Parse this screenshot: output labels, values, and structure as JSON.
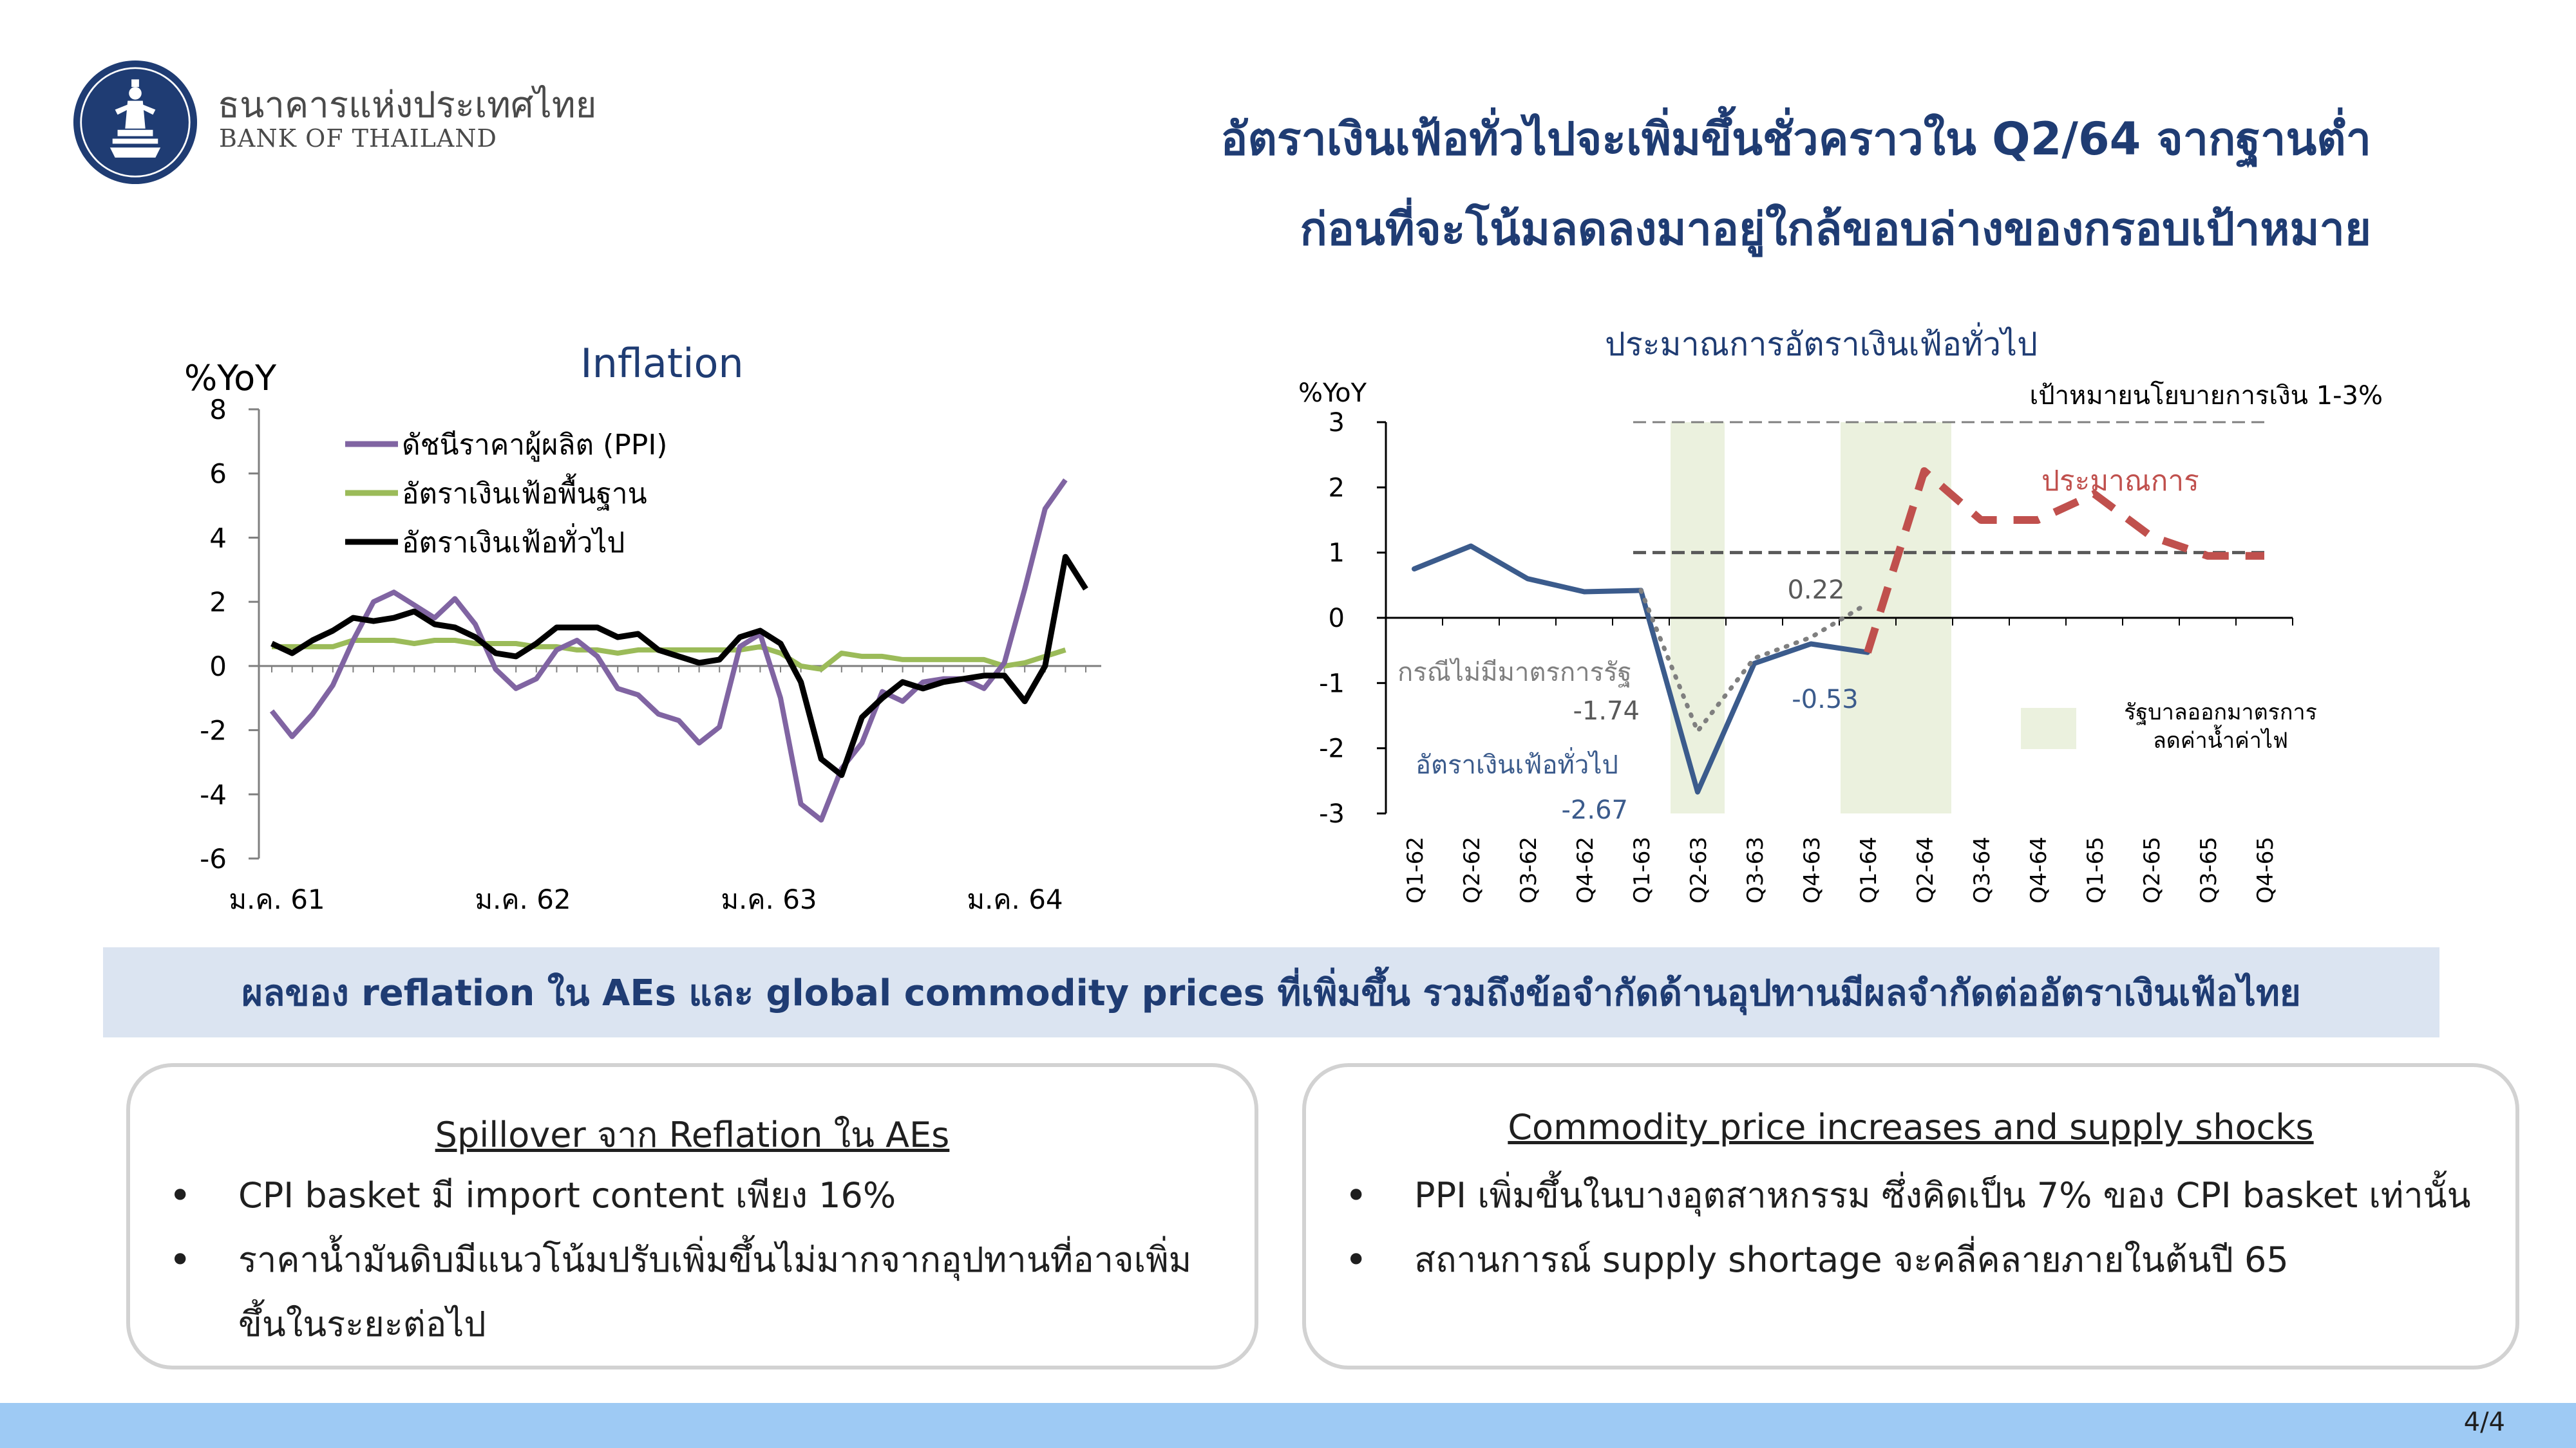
{
  "header": {
    "bank_name_th": "ธนาคารแห่งประเทศไทย",
    "bank_name_en": "BANK OF THAILAND",
    "title_line1": "อัตราเงินเฟ้อทั่วไปจะเพิ่มขึ้นชั่วคราวใน Q2/64 จากฐานต่ำ",
    "title_line2": "ก่อนที่จะโน้มลดลงมาอยู่ใกล้ขอบล่างของกรอบเป้าหมาย"
  },
  "colors": {
    "navy": "#1f3c73",
    "ppi": "#8064a2",
    "core": "#9bbb59",
    "headline": "#000000",
    "forecast": "#c0504d",
    "actual": "#3b5b8c",
    "no_measure": "#7f7f7f",
    "shade": "#ebf1de"
  },
  "chart_data": [
    {
      "type": "line",
      "title": "Inflation",
      "ylabel": "%YoY",
      "ylim": [
        -6,
        8
      ],
      "yticks": [
        "8",
        "6",
        "4",
        "2",
        "0",
        "-2",
        "-4",
        "-6"
      ],
      "xtick_labels": [
        "ม.ค. 61",
        "ม.ค. 62",
        "ม.ค. 63",
        "ม.ค. 64"
      ],
      "legend_position": "top-left",
      "series": [
        {
          "name": "ดัชนีราคาผู้ผลิต (PPI)",
          "color": "#8064a2",
          "values": [
            -1.4,
            -2.2,
            -1.5,
            -0.6,
            0.8,
            2.0,
            2.3,
            1.9,
            1.5,
            2.1,
            1.3,
            -0.1,
            -0.7,
            -0.4,
            0.5,
            0.8,
            0.3,
            -0.7,
            -0.9,
            -1.5,
            -1.7,
            -2.4,
            -1.9,
            0.6,
            1.0,
            -1.0,
            -4.3,
            -4.8,
            -3.2,
            -2.4,
            -0.8,
            -1.1,
            -0.5,
            -0.4,
            -0.4,
            -0.7,
            0.1,
            2.4,
            4.9,
            5.8
          ]
        },
        {
          "name": "อัตราเงินเฟ้อพื้นฐาน",
          "color": "#9bbb59",
          "values": [
            0.6,
            0.6,
            0.6,
            0.6,
            0.8,
            0.8,
            0.8,
            0.7,
            0.8,
            0.8,
            0.7,
            0.7,
            0.7,
            0.6,
            0.6,
            0.5,
            0.5,
            0.4,
            0.5,
            0.5,
            0.5,
            0.5,
            0.5,
            0.5,
            0.6,
            0.4,
            0.0,
            -0.1,
            0.4,
            0.3,
            0.3,
            0.2,
            0.2,
            0.2,
            0.2,
            0.2,
            0.0,
            0.1,
            0.3,
            0.5
          ]
        },
        {
          "name": "อัตราเงินเฟ้อทั่วไป",
          "color": "#000000",
          "values": [
            0.7,
            0.4,
            0.8,
            1.1,
            1.5,
            1.4,
            1.5,
            1.7,
            1.3,
            1.2,
            0.9,
            0.4,
            0.3,
            0.7,
            1.2,
            1.2,
            1.2,
            0.9,
            1.0,
            0.5,
            0.3,
            0.1,
            0.2,
            0.9,
            1.1,
            0.7,
            -0.5,
            -2.9,
            -3.4,
            -1.6,
            -1.0,
            -0.5,
            -0.7,
            -0.5,
            -0.4,
            -0.3,
            -0.3,
            -1.1,
            0.0,
            3.4,
            2.4
          ]
        }
      ]
    },
    {
      "type": "line",
      "title": "ประมาณการอัตราเงินเฟ้อทั่วไป",
      "ylabel": "%YoY",
      "ylim": [
        -3,
        3
      ],
      "yticks": [
        "3",
        "2",
        "1",
        "0",
        "-1",
        "-2",
        "-3"
      ],
      "categories": [
        "Q1-62",
        "Q2-62",
        "Q3-62",
        "Q4-62",
        "Q1-63",
        "Q2-63",
        "Q3-63",
        "Q4-63",
        "Q1-64",
        "Q2-64",
        "Q3-64",
        "Q4-64",
        "Q1-65",
        "Q2-65",
        "Q3-65",
        "Q4-65"
      ],
      "target_label": "เป้าหมายนโยบายการเงิน 1-3%",
      "target_band": [
        1,
        3
      ],
      "shaded_periods": [
        [
          "Q2-63"
        ],
        [
          "Q1-64",
          "Q2-64"
        ]
      ],
      "shade_legend": [
        "รัฐบาลออกมาตรการ",
        "ลดค่าน้ำค่าไฟ"
      ],
      "series": [
        {
          "name": "อัตราเงินเฟ้อทั่วไป",
          "color": "#3b5b8c",
          "values": [
            0.75,
            1.1,
            0.6,
            0.4,
            0.42,
            -2.67,
            -0.7,
            -0.4,
            -0.53,
            null,
            null,
            null,
            null,
            null,
            null,
            null
          ]
        },
        {
          "name": "กรณีไม่มีมาตรการรัฐ",
          "color": "#7f7f7f",
          "values": [
            null,
            null,
            null,
            null,
            0.42,
            -1.74,
            -0.62,
            -0.3,
            0.22,
            null,
            null,
            null,
            null,
            null,
            null,
            null
          ]
        },
        {
          "name": "ประมาณการ",
          "color": "#c0504d",
          "values": [
            null,
            null,
            null,
            null,
            null,
            null,
            null,
            null,
            -0.53,
            2.25,
            1.5,
            1.5,
            1.9,
            1.25,
            0.95,
            0.95
          ]
        }
      ],
      "annotations": [
        {
          "text": "0.22",
          "color": "#595959"
        },
        {
          "text": "-1.74",
          "color": "#595959"
        },
        {
          "text": "-0.53",
          "color": "#3b5b8c"
        },
        {
          "text": "-2.67",
          "color": "#3b5b8c"
        }
      ]
    }
  ],
  "banner": "ผลของ reflation ใน AEs และ global commodity prices ที่เพิ่มขึ้น รวมถึงข้อจำกัดด้านอุปทานมีผลจำกัดต่ออัตราเงินเฟ้อไทย",
  "left_box": {
    "heading": "Spillover จาก Reflation ใน AEs",
    "bullets": [
      "CPI basket มี import content เพียง 16%",
      "ราคาน้ำมันดิบมีแนวโน้มปรับเพิ่มขึ้นไม่มากจากอุปทานที่อาจเพิ่มขึ้นในระยะต่อไป"
    ]
  },
  "right_box": {
    "heading": "Commodity price increases and supply shocks",
    "bullets": [
      "PPI เพิ่มขึ้นในบางอุตสาหกรรม ซึ่งคิดเป็น 7% ของ CPI basket เท่านั้น",
      "สถานการณ์ supply shortage จะคลี่คลายภายในต้นปี 65"
    ]
  },
  "page_number": "4/4"
}
